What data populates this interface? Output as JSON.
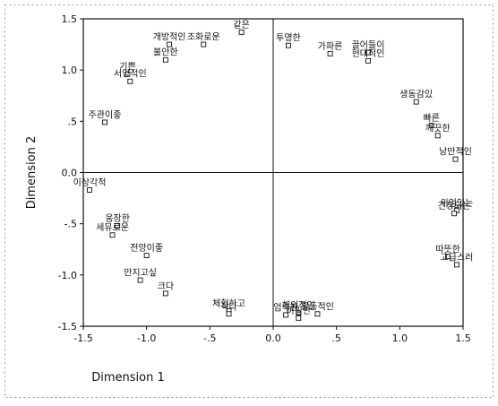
{
  "chart_data": {
    "type": "scatter",
    "title": "",
    "xlabel": "Dimension 1",
    "ylabel": "Dimension 2",
    "xlim": [
      -1.5,
      1.5
    ],
    "ylim": [
      -1.5,
      1.5
    ],
    "x_ticks": [
      -1.5,
      -1.0,
      -0.5,
      0.0,
      0.5,
      1.0,
      1.5
    ],
    "x_tick_labels": [
      "-1.5",
      "-1.0",
      "-.5",
      "0.0",
      ".5",
      "1.0",
      "1.5"
    ],
    "y_ticks": [
      1.5,
      1.0,
      0.5,
      0.0,
      -0.5,
      -1.0,
      -1.5
    ],
    "y_tick_labels": [
      "1.5",
      "1.0",
      ".5",
      "0.0",
      "-.5",
      "-1.0",
      "-1.5"
    ],
    "reference_lines": {
      "x": 0,
      "y": 0
    },
    "grid": false,
    "legend": "none",
    "marker": "open-square",
    "points": [
      {
        "label": "기쁜",
        "x": -1.15,
        "y": 0.96
      },
      {
        "label": "서양적인",
        "x": -1.13,
        "y": 0.89
      },
      {
        "label": "개방적인",
        "x": -0.82,
        "y": 1.25
      },
      {
        "label": "조화로운",
        "x": -0.55,
        "y": 1.25
      },
      {
        "label": "불안한",
        "x": -0.85,
        "y": 1.1
      },
      {
        "label": "같은",
        "x": -0.25,
        "y": 1.37
      },
      {
        "label": "투명한",
        "x": 0.12,
        "y": 1.24
      },
      {
        "label": "가파른",
        "x": 0.45,
        "y": 1.16
      },
      {
        "label": "끌어들이",
        "x": 0.75,
        "y": 1.17
      },
      {
        "label": "현대적인",
        "x": 0.75,
        "y": 1.09
      },
      {
        "label": "생동감있",
        "x": 1.13,
        "y": 0.69
      },
      {
        "label": "빠른",
        "x": 1.25,
        "y": 0.46
      },
      {
        "label": "깨끗한",
        "x": 1.3,
        "y": 0.36
      },
      {
        "label": "낭만적인",
        "x": 1.44,
        "y": 0.13
      },
      {
        "label": "주관이좋",
        "x": -1.33,
        "y": 0.49
      },
      {
        "label": "이상각적",
        "x": -1.45,
        "y": -0.17
      },
      {
        "label": "위엄있는",
        "x": 1.45,
        "y": -0.37
      },
      {
        "label": "긴장되는",
        "x": 1.43,
        "y": -0.4
      },
      {
        "label": "따뜻한",
        "x": 1.38,
        "y": -0.82
      },
      {
        "label": "고급스러",
        "x": 1.45,
        "y": -0.9
      },
      {
        "label": "웅장한",
        "x": -1.23,
        "y": -0.52
      },
      {
        "label": "세뮤로운",
        "x": -1.27,
        "y": -0.61
      },
      {
        "label": "전망이좋",
        "x": -1.0,
        "y": -0.81
      },
      {
        "label": "만지고싶",
        "x": -1.05,
        "y": -1.05
      },
      {
        "label": "크다",
        "x": -0.85,
        "y": -1.18
      },
      {
        "label": "체험하고",
        "x": -0.35,
        "y": -1.35
      },
      {
        "label": "작다",
        "x": -0.35,
        "y": -1.38
      },
      {
        "label": "엄숙한",
        "x": 0.1,
        "y": -1.39
      },
      {
        "label": "해외적인",
        "x": 0.2,
        "y": -1.37
      },
      {
        "label": "활동적인",
        "x": 0.35,
        "y": -1.38
      },
      {
        "label": "비밀한",
        "x": 0.2,
        "y": -1.42
      }
    ]
  }
}
